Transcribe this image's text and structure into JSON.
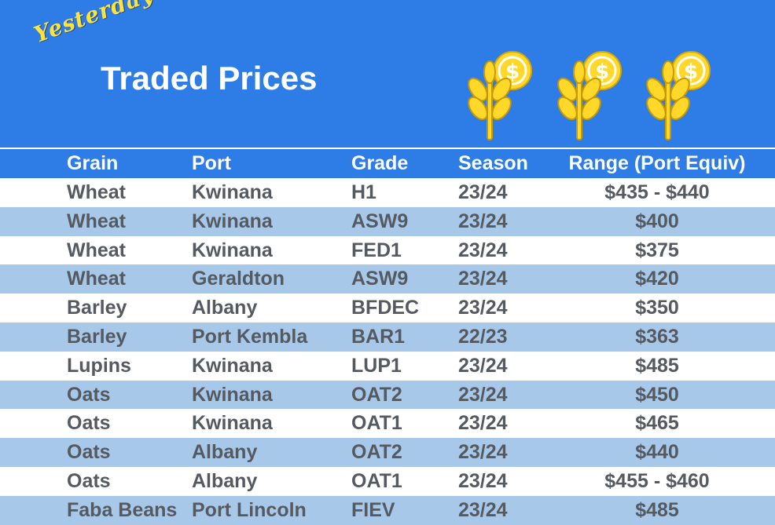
{
  "banner": {
    "script_title": "Yesterday's",
    "main_title": "Traded Prices",
    "icons": [
      "wheat-coin-icon",
      "wheat-coin-icon",
      "wheat-coin-icon"
    ],
    "colors": {
      "banner": "#2e7de6",
      "accent": "#ffe23a",
      "row_alt": "#a8c8ea",
      "text": "#555a60"
    }
  },
  "table": {
    "headers": {
      "grain": "Grain",
      "port": "Port",
      "grade": "Grade",
      "season": "Season",
      "range": "Range (Port Equiv)"
    },
    "rows": [
      {
        "grain": "Wheat",
        "port": "Kwinana",
        "grade": "H1",
        "season": "23/24",
        "range": "$435 - $440"
      },
      {
        "grain": "Wheat",
        "port": "Kwinana",
        "grade": "ASW9",
        "season": "23/24",
        "range": "$400"
      },
      {
        "grain": "Wheat",
        "port": "Kwinana",
        "grade": "FED1",
        "season": "23/24",
        "range": "$375"
      },
      {
        "grain": "Wheat",
        "port": "Geraldton",
        "grade": "ASW9",
        "season": "23/24",
        "range": "$420"
      },
      {
        "grain": "Barley",
        "port": "Albany",
        "grade": "BFDEC",
        "season": "23/24",
        "range": "$350"
      },
      {
        "grain": "Barley",
        "port": "Port Kembla",
        "grade": "BAR1",
        "season": "22/23",
        "range": "$363"
      },
      {
        "grain": "Lupins",
        "port": "Kwinana",
        "grade": "LUP1",
        "season": "23/24",
        "range": "$485"
      },
      {
        "grain": "Oats",
        "port": "Kwinana",
        "grade": "OAT2",
        "season": "23/24",
        "range": "$450"
      },
      {
        "grain": "Oats",
        "port": "Kwinana",
        "grade": "OAT1",
        "season": "23/24",
        "range": "$465"
      },
      {
        "grain": "Oats",
        "port": "Albany",
        "grade": "OAT2",
        "season": "23/24",
        "range": "$440"
      },
      {
        "grain": "Oats",
        "port": "Albany",
        "grade": "OAT1",
        "season": "23/24",
        "range": "$455 - $460"
      },
      {
        "grain": "Faba Beans",
        "port": "Port Lincoln",
        "grade": "FIEV",
        "season": "23/24",
        "range": "$485"
      }
    ]
  }
}
